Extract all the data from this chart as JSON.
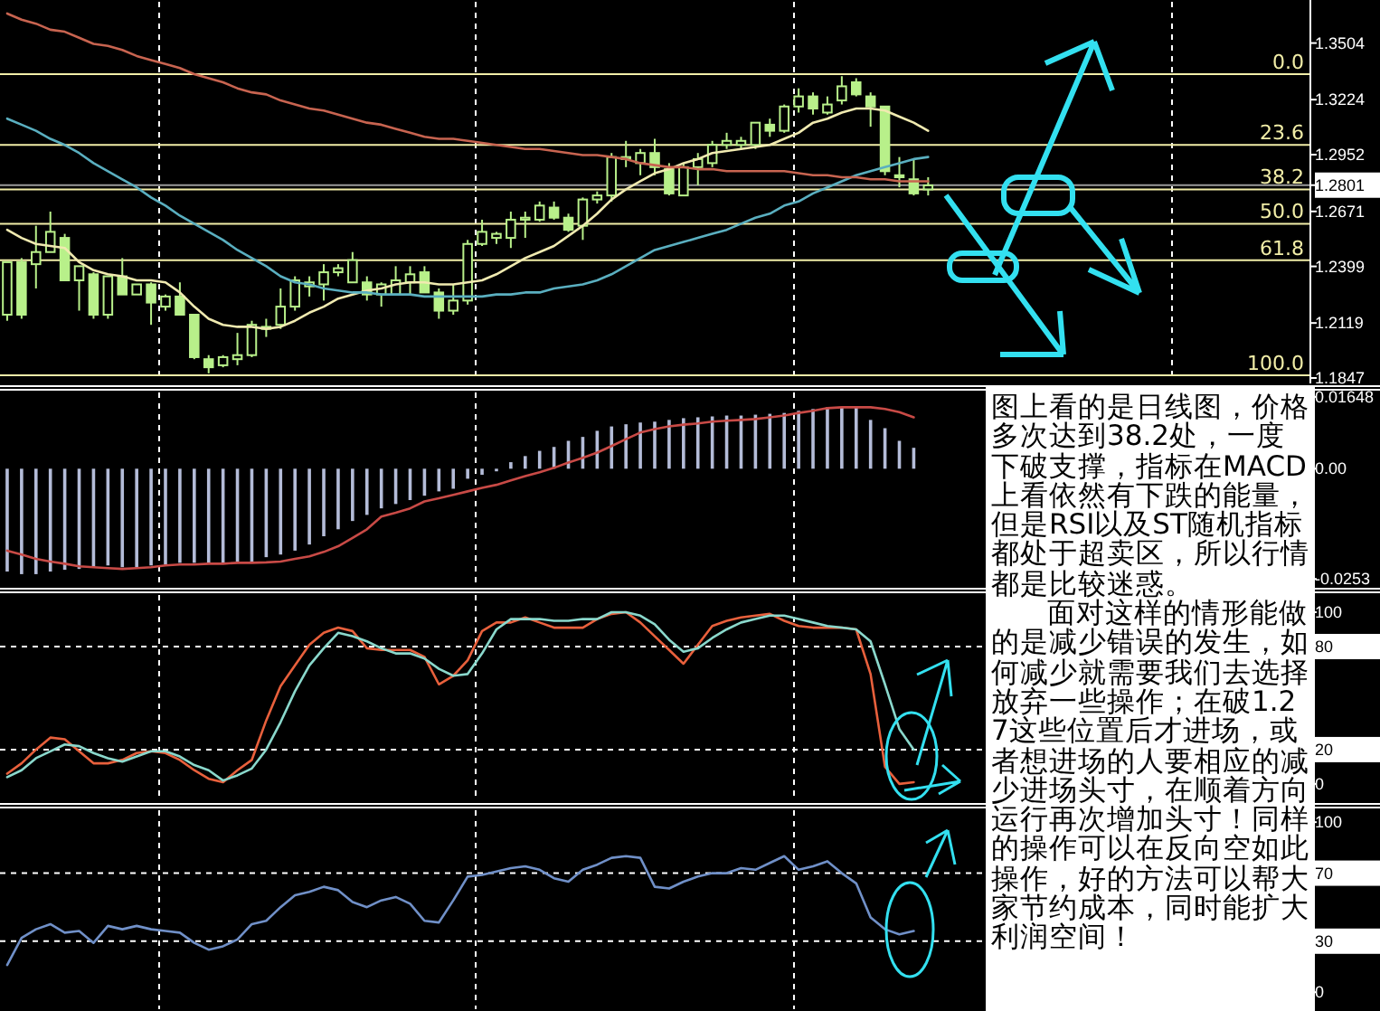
{
  "chart_data": [
    {
      "type": "candlestick",
      "categories": [
        null,
        null,
        null,
        null,
        null,
        null,
        null,
        null,
        null,
        null,
        null,
        null,
        null,
        null,
        null,
        null,
        null,
        null,
        null,
        null,
        null,
        null,
        null,
        null,
        null,
        null,
        null,
        null,
        null,
        null,
        null,
        null,
        null,
        null,
        null,
        null,
        null,
        null,
        null,
        null,
        null,
        null,
        null,
        null,
        null,
        null,
        null,
        null,
        null,
        null,
        null,
        null,
        null,
        null,
        null,
        null,
        null,
        null,
        null,
        null,
        null,
        null,
        null,
        null,
        null,
        null,
        null,
        null,
        null,
        null,
        null,
        null,
        null,
        null,
        null,
        null,
        null,
        null,
        null,
        null,
        null,
        null,
        null,
        null,
        null,
        null,
        null,
        null,
        null,
        null,
        null
      ],
      "color": "#b8f08a",
      "ohlc": [
        [
          1.216,
          1.242,
          1.213,
          1.242
        ],
        [
          1.242,
          1.244,
          1.214,
          1.216
        ],
        [
          1.241,
          1.26,
          1.229,
          1.247
        ],
        [
          1.247,
          1.267,
          1.247,
          1.257
        ],
        [
          1.254,
          1.256,
          1.233,
          1.233
        ],
        [
          1.233,
          1.24,
          1.218,
          1.24
        ],
        [
          1.236,
          1.237,
          1.214,
          1.216
        ],
        [
          1.216,
          1.235,
          1.214,
          1.235
        ],
        [
          1.235,
          1.244,
          1.226,
          1.226
        ],
        [
          1.226,
          1.231,
          1.226,
          1.231
        ],
        [
          1.231,
          1.232,
          1.211,
          1.222
        ],
        [
          1.22,
          1.226,
          1.218,
          1.225
        ],
        [
          1.225,
          1.232,
          1.216,
          1.216
        ],
        [
          1.216,
          1.216,
          1.194,
          1.195
        ],
        [
          1.194,
          1.196,
          1.187,
          1.19
        ],
        [
          1.191,
          1.196,
          1.19,
          1.195
        ],
        [
          1.194,
          1.207,
          1.191,
          1.196
        ],
        [
          1.196,
          1.213,
          1.195,
          1.211
        ],
        [
          1.209,
          1.214,
          1.205,
          1.21
        ],
        [
          1.211,
          1.229,
          1.209,
          1.22
        ],
        [
          1.22,
          1.235,
          1.218,
          1.233
        ],
        [
          1.23,
          1.235,
          1.225,
          1.232
        ],
        [
          1.231,
          1.241,
          1.223,
          1.237
        ],
        [
          1.237,
          1.241,
          1.235,
          1.239
        ],
        [
          1.232,
          1.247,
          1.232,
          1.243
        ],
        [
          1.232,
          1.235,
          1.223,
          1.226
        ],
        [
          1.226,
          1.232,
          1.22,
          1.231
        ],
        [
          1.226,
          1.24,
          1.226,
          1.233
        ],
        [
          1.232,
          1.24,
          1.226,
          1.236
        ],
        [
          1.237,
          1.24,
          1.227,
          1.227
        ],
        [
          1.227,
          1.229,
          1.214,
          1.218
        ],
        [
          1.218,
          1.231,
          1.216,
          1.223
        ],
        [
          1.223,
          1.253,
          1.221,
          1.251
        ],
        [
          1.251,
          1.263,
          1.25,
          1.257
        ],
        [
          1.254,
          1.257,
          1.251,
          1.256
        ],
        [
          1.254,
          1.267,
          1.249,
          1.263
        ],
        [
          1.263,
          1.267,
          1.254,
          1.264
        ],
        [
          1.263,
          1.272,
          1.262,
          1.27
        ],
        [
          1.269,
          1.272,
          1.263,
          1.264
        ],
        [
          1.264,
          1.266,
          1.257,
          1.258
        ],
        [
          1.26,
          1.274,
          1.253,
          1.273
        ],
        [
          1.273,
          1.277,
          1.271,
          1.275
        ],
        [
          1.275,
          1.296,
          1.272,
          1.294
        ],
        [
          1.293,
          1.302,
          1.289,
          1.294
        ],
        [
          1.291,
          1.298,
          1.285,
          1.296
        ],
        [
          1.296,
          1.303,
          1.285,
          1.289
        ],
        [
          1.288,
          1.291,
          1.275,
          1.276
        ],
        [
          1.275,
          1.291,
          1.275,
          1.289
        ],
        [
          1.289,
          1.296,
          1.28,
          1.293
        ],
        [
          1.291,
          1.302,
          1.289,
          1.3
        ],
        [
          1.3,
          1.306,
          1.298,
          1.302
        ],
        [
          1.3,
          1.304,
          1.298,
          1.302
        ],
        [
          1.3,
          1.311,
          1.298,
          1.311
        ],
        [
          1.31,
          1.313,
          1.304,
          1.307
        ],
        [
          1.307,
          1.32,
          1.306,
          1.319
        ],
        [
          1.319,
          1.328,
          1.316,
          1.324
        ],
        [
          1.324,
          1.326,
          1.315,
          1.318
        ],
        [
          1.316,
          1.324,
          1.315,
          1.32
        ],
        [
          1.322,
          1.334,
          1.32,
          1.329
        ],
        [
          1.331,
          1.333,
          1.324,
          1.325
        ],
        [
          1.324,
          1.326,
          1.309,
          1.319
        ],
        [
          1.319,
          1.319,
          1.285,
          1.287
        ],
        [
          1.285,
          1.294,
          1.279,
          1.284
        ],
        [
          1.283,
          1.293,
          1.275,
          1.276
        ],
        [
          1.278,
          1.284,
          1.275,
          1.28
        ],
        null,
        null,
        null,
        null,
        null,
        null,
        null,
        null,
        null,
        null,
        null,
        null,
        null,
        null,
        null,
        null,
        null,
        null,
        null,
        null,
        null,
        null,
        null,
        null,
        null,
        null
      ],
      "series": [
        {
          "type": "line",
          "color": "#f0eab0",
          "values": [
            1.258,
            1.254,
            1.251,
            1.25,
            1.249,
            1.242,
            1.238,
            1.236,
            1.235,
            1.233,
            1.233,
            1.232,
            1.227,
            1.22,
            1.214,
            1.211,
            1.21,
            1.21,
            1.209,
            1.21,
            1.213,
            1.217,
            1.22,
            1.224,
            1.226,
            1.228,
            1.229,
            1.231,
            1.232,
            1.232,
            1.231,
            1.231,
            1.232,
            1.233,
            1.236,
            1.24,
            1.244,
            1.247,
            1.25,
            1.255,
            1.26,
            1.266,
            1.273,
            1.278,
            1.282,
            1.286,
            1.288,
            1.291,
            1.293,
            1.296,
            1.297,
            1.298,
            1.299,
            1.3,
            1.303,
            1.306,
            1.311,
            1.313,
            1.316,
            1.318,
            1.318,
            1.317,
            1.314,
            1.311,
            1.307,
            null,
            null,
            null,
            null,
            null,
            null,
            null,
            null,
            null,
            null,
            null,
            null,
            null,
            null,
            null,
            null,
            null,
            null,
            null,
            null,
            null,
            null,
            null,
            null,
            null,
            null
          ]
        },
        {
          "type": "line",
          "color": "#5aafc0",
          "values": [
            1.313,
            1.31,
            1.307,
            1.303,
            1.3,
            1.296,
            1.291,
            1.287,
            1.283,
            1.279,
            1.274,
            1.27,
            1.265,
            1.261,
            1.257,
            1.253,
            1.248,
            1.244,
            1.24,
            1.235,
            1.232,
            1.231,
            1.229,
            1.228,
            1.227,
            1.227,
            1.226,
            1.226,
            1.226,
            1.225,
            1.225,
            1.225,
            1.225,
            1.225,
            1.226,
            1.226,
            1.227,
            1.227,
            1.229,
            1.23,
            1.231,
            1.233,
            1.236,
            1.24,
            1.244,
            1.248,
            1.25,
            1.252,
            1.254,
            1.256,
            1.258,
            1.261,
            1.264,
            1.266,
            1.27,
            1.272,
            1.276,
            1.279,
            1.282,
            1.285,
            1.287,
            1.289,
            1.291,
            1.293,
            1.294,
            null,
            null,
            null,
            null,
            null,
            null,
            null,
            null,
            null,
            null,
            null,
            null,
            null,
            null,
            null,
            null,
            null,
            null,
            null,
            null,
            null,
            null,
            null,
            null,
            null,
            null
          ]
        },
        {
          "type": "line",
          "color": "#c86450",
          "values": [
            1.365,
            1.362,
            1.36,
            1.357,
            1.356,
            1.353,
            1.35,
            1.349,
            1.347,
            1.344,
            1.342,
            1.34,
            1.338,
            1.335,
            1.333,
            1.331,
            1.328,
            1.326,
            1.325,
            1.322,
            1.32,
            1.318,
            1.317,
            1.315,
            1.313,
            1.311,
            1.31,
            1.308,
            1.306,
            1.304,
            1.303,
            1.303,
            1.302,
            1.301,
            1.3,
            1.299,
            1.298,
            1.298,
            1.297,
            1.296,
            1.295,
            1.295,
            1.294,
            1.293,
            1.291,
            1.29,
            1.289,
            1.289,
            1.288,
            1.288,
            1.287,
            1.287,
            1.287,
            1.287,
            1.287,
            1.286,
            1.285,
            1.285,
            1.284,
            1.284,
            1.283,
            1.283,
            1.282,
            1.282,
            1.282,
            null,
            null,
            null,
            null,
            null,
            null,
            null,
            null,
            null,
            null,
            null,
            null,
            null,
            null,
            null,
            null,
            null,
            null,
            null,
            null,
            null,
            null,
            null,
            null,
            null,
            null
          ]
        }
      ],
      "ylim": [
        1.1829,
        1.3708
      ],
      "yticks": [
        1.3504,
        1.3224,
        1.2952,
        1.2801,
        1.2671,
        1.2399,
        1.2119,
        1.1847
      ],
      "ref_lines": [
        {
          "axis": "y",
          "value": 1.335,
          "color": "#f2eea8"
        },
        {
          "axis": "y",
          "value": 1.3,
          "color": "#f2eea8"
        },
        {
          "axis": "y",
          "value": 1.278,
          "color": "#f2eea8"
        },
        {
          "axis": "y",
          "value": 1.261,
          "color": "#f2eea8"
        },
        {
          "axis": "y",
          "value": 1.243,
          "color": "#f2eea8"
        },
        {
          "axis": "y",
          "value": 1.186,
          "color": "#f2eea8"
        },
        {
          "axis": "y",
          "value": 1.2801,
          "color": "#9a9a9a"
        }
      ],
      "annotations": [
        {
          "text": "0.0",
          "y": 1.335
        },
        {
          "text": "23.6",
          "y": 1.3
        },
        {
          "text": "38.2",
          "y": 1.278
        },
        {
          "text": "50.0",
          "y": 1.261
        },
        {
          "text": "61.8",
          "y": 1.243
        },
        {
          "text": "100.0",
          "y": 1.186
        }
      ]
    },
    {
      "type": "bar",
      "categories": [
        null,
        null,
        null,
        null,
        null,
        null,
        null,
        null,
        null,
        null,
        null,
        null,
        null,
        null,
        null,
        null,
        null,
        null,
        null,
        null,
        null,
        null,
        null,
        null,
        null,
        null,
        null,
        null,
        null,
        null,
        null,
        null,
        null,
        null,
        null,
        null,
        null,
        null,
        null,
        null,
        null,
        null,
        null,
        null,
        null,
        null,
        null,
        null,
        null,
        null,
        null,
        null,
        null,
        null,
        null,
        null,
        null,
        null,
        null,
        null,
        null,
        null,
        null,
        null,
        null,
        null,
        null,
        null,
        null,
        null,
        null,
        null,
        null,
        null,
        null,
        null,
        null,
        null,
        null,
        null,
        null,
        null,
        null,
        null,
        null,
        null,
        null,
        null,
        null,
        null,
        null
      ],
      "series": [
        {
          "type": "bar",
          "color": "#b4bcd8",
          "values": [
            -0.0236,
            -0.0242,
            -0.0242,
            -0.0236,
            -0.0232,
            -0.023,
            -0.0226,
            -0.0222,
            -0.0226,
            -0.0226,
            -0.0222,
            -0.022,
            -0.0216,
            -0.0216,
            -0.0216,
            -0.0216,
            -0.0213,
            -0.0213,
            -0.0203,
            -0.0197,
            -0.0188,
            -0.0174,
            -0.0155,
            -0.0139,
            -0.012,
            -0.0106,
            -0.0091,
            -0.0081,
            -0.0072,
            -0.0062,
            -0.0052,
            -0.0046,
            -0.0023,
            -0.0014,
            -0.0006,
            0.0015,
            0.0029,
            0.0041,
            0.005,
            0.0064,
            0.0073,
            0.0087,
            0.0097,
            0.0102,
            0.0106,
            0.0108,
            0.0112,
            0.0116,
            0.0118,
            0.012,
            0.0122,
            0.0122,
            0.0124,
            0.0126,
            0.0128,
            0.0133,
            0.0137,
            0.0141,
            0.0141,
            0.0141,
            0.0112,
            0.0093,
            0.0064,
            0.0048,
            null,
            null,
            null,
            null,
            null,
            null,
            null,
            null,
            null,
            null,
            null,
            null,
            null,
            null,
            null,
            null,
            null,
            null,
            null,
            null,
            null,
            null,
            null,
            null,
            null,
            null,
            null
          ]
        },
        {
          "type": "line",
          "color": "#c84a46",
          "values": [
            -0.0188,
            -0.0197,
            -0.0207,
            -0.0213,
            -0.0218,
            -0.0224,
            -0.0226,
            -0.0228,
            -0.023,
            -0.0228,
            -0.0226,
            -0.0222,
            -0.022,
            -0.022,
            -0.0218,
            -0.0218,
            -0.0216,
            -0.0216,
            -0.0215,
            -0.0213,
            -0.0207,
            -0.0201,
            -0.0191,
            -0.0178,
            -0.0159,
            -0.0139,
            -0.011,
            -0.0101,
            -0.0091,
            -0.0075,
            -0.0068,
            -0.006,
            -0.0052,
            -0.0044,
            -0.0037,
            -0.0027,
            -0.0017,
            -0.0008,
            0.0002,
            0.0014,
            0.0025,
            0.0037,
            0.0052,
            0.0068,
            0.0083,
            0.0091,
            0.0097,
            0.0101,
            0.0104,
            0.0108,
            0.011,
            0.0112,
            0.0114,
            0.0118,
            0.0122,
            0.0128,
            0.0133,
            0.0139,
            0.0141,
            0.0141,
            0.0141,
            0.0137,
            0.013,
            0.0118,
            null,
            null,
            null,
            null,
            null,
            null,
            null,
            null,
            null,
            null,
            null,
            null,
            null,
            null,
            null,
            null,
            null,
            null,
            null,
            null,
            null,
            null,
            null,
            null,
            null,
            null,
            null
          ]
        }
      ],
      "ylim": [
        -0.0265,
        0.0175
      ],
      "yticks": [
        0.01648,
        {
          "value": 0,
          "label": "0.00"
        },
        -0.0253
      ]
    },
    {
      "type": "line",
      "categories": [
        null,
        null,
        null,
        null,
        null,
        null,
        null,
        null,
        null,
        null,
        null,
        null,
        null,
        null,
        null,
        null,
        null,
        null,
        null,
        null,
        null,
        null,
        null,
        null,
        null,
        null,
        null,
        null,
        null,
        null,
        null,
        null,
        null,
        null,
        null,
        null,
        null,
        null,
        null,
        null,
        null,
        null,
        null,
        null,
        null,
        null,
        null,
        null,
        null,
        null,
        null,
        null,
        null,
        null,
        null,
        null,
        null,
        null,
        null,
        null,
        null,
        null,
        null,
        null,
        null,
        null,
        null,
        null,
        null,
        null,
        null,
        null,
        null,
        null,
        null,
        null,
        null,
        null,
        null,
        null,
        null,
        null,
        null,
        null,
        null,
        null,
        null,
        null,
        null,
        null,
        null
      ],
      "series": [
        {
          "color": "#e8603c",
          "values": [
            6,
            12,
            20,
            27,
            26,
            19,
            12,
            12,
            14,
            18,
            19,
            18,
            14,
            8,
            3,
            1,
            8,
            14,
            37,
            57,
            69,
            81,
            88,
            91,
            89,
            79,
            78,
            78,
            78,
            74,
            58,
            63,
            72,
            89,
            94,
            94,
            97,
            94,
            91,
            91,
            91,
            96,
            99,
            100,
            94,
            86,
            78,
            70,
            81,
            92,
            95,
            97,
            98,
            99,
            95,
            92,
            91,
            91,
            91,
            90,
            64,
            10,
            0,
            1,
            null,
            null,
            null,
            null,
            null,
            null,
            null,
            null,
            null,
            null,
            null,
            null,
            null,
            null,
            null,
            null,
            null,
            null,
            null,
            null,
            null,
            null,
            null,
            null,
            null,
            null,
            null
          ]
        },
        {
          "color": "#8ad8cc",
          "values": [
            4,
            8,
            15,
            19,
            23,
            22,
            18,
            15,
            13,
            16,
            19,
            19,
            16,
            11,
            8,
            2,
            5,
            9,
            20,
            36,
            54,
            69,
            79,
            88,
            86,
            83,
            79,
            76,
            76,
            73,
            67,
            63,
            64,
            76,
            90,
            96,
            96,
            96,
            95,
            95,
            96,
            96,
            100,
            100,
            98,
            93,
            84,
            77,
            79,
            85,
            90,
            94,
            96,
            98,
            98,
            96,
            94,
            92,
            91,
            90,
            83,
            58,
            32,
            20,
            null,
            null,
            null,
            null,
            null,
            null,
            null,
            null,
            null,
            null,
            null,
            null,
            null,
            null,
            null,
            null,
            null,
            null,
            null,
            null,
            null,
            null,
            null,
            null,
            null,
            null,
            null
          ]
        }
      ],
      "ylim": [
        -9,
        110
      ],
      "yticks": [
        100,
        80,
        20,
        0
      ],
      "ref_lines": [
        {
          "axis": "y",
          "value": 80,
          "color": "#ffffff",
          "line_style": "dashed"
        },
        {
          "axis": "y",
          "value": 20,
          "color": "#ffffff",
          "line_style": "dashed"
        }
      ]
    },
    {
      "type": "line",
      "categories": [
        null,
        null,
        null,
        null,
        null,
        null,
        null,
        null,
        null,
        null,
        null,
        null,
        null,
        null,
        null,
        null,
        null,
        null,
        null,
        null,
        null,
        null,
        null,
        null,
        null,
        null,
        null,
        null,
        null,
        null,
        null,
        null,
        null,
        null,
        null,
        null,
        null,
        null,
        null,
        null,
        null,
        null,
        null,
        null,
        null,
        null,
        null,
        null,
        null,
        null,
        null,
        null,
        null,
        null,
        null,
        null,
        null,
        null,
        null,
        null,
        null,
        null,
        null,
        null,
        null,
        null,
        null,
        null,
        null,
        null,
        null,
        null,
        null,
        null,
        null,
        null,
        null,
        null,
        null,
        null,
        null,
        null,
        null,
        null,
        null,
        null,
        null,
        null,
        null,
        null,
        null
      ],
      "series": [
        {
          "color": "#7090c8",
          "values": [
            16,
            32,
            37,
            40,
            35,
            36,
            29,
            39,
            37,
            39,
            37,
            36,
            35,
            29,
            25,
            27,
            31,
            40,
            42,
            50,
            57,
            59,
            62,
            60,
            53,
            50,
            54,
            56,
            52,
            42,
            41,
            54,
            68,
            69,
            71,
            73,
            74,
            72,
            67,
            65,
            72,
            75,
            79,
            80,
            79,
            62,
            61,
            65,
            68,
            70,
            70,
            73,
            72,
            76,
            80,
            72,
            74,
            77,
            70,
            64,
            44,
            37,
            34,
            36,
            null,
            null,
            null,
            null,
            null,
            null,
            null,
            null,
            null,
            null,
            null,
            null,
            null,
            null,
            null,
            null,
            null,
            null,
            null,
            null,
            null,
            null,
            null,
            null,
            null,
            null,
            null
          ]
        }
      ],
      "ylim": [
        -10,
        107
      ],
      "yticks": [
        100,
        70,
        30,
        0
      ],
      "ref_lines": [
        {
          "axis": "y",
          "value": 70,
          "color": "#ffffff",
          "line_style": "dashed"
        },
        {
          "axis": "y",
          "value": 30,
          "color": "#ffffff",
          "line_style": "dashed"
        }
      ]
    },
    {
      "type": "other",
      "annotations": [
        "图上看的是日线图，价格多次达到38.2处，一度下破支撑，指标在MACD上看依然有下跌的能量，但是RSI以及ST随机指标都处于超卖区，所以行情都是比较迷惑。",
        "面对这样的情形能做的是减少错误的发生，如何减少就需要我们去选择放弃一些操作；在破1.27这些位置后才进场，或者想进场的人要相应的减少进场头寸，在顺着方向运行再次增加头寸！同样的操作可以在反向空如此操作，好的方法可以帮大家节约成本，同时能扩大利润空间！"
      ]
    }
  ]
}
